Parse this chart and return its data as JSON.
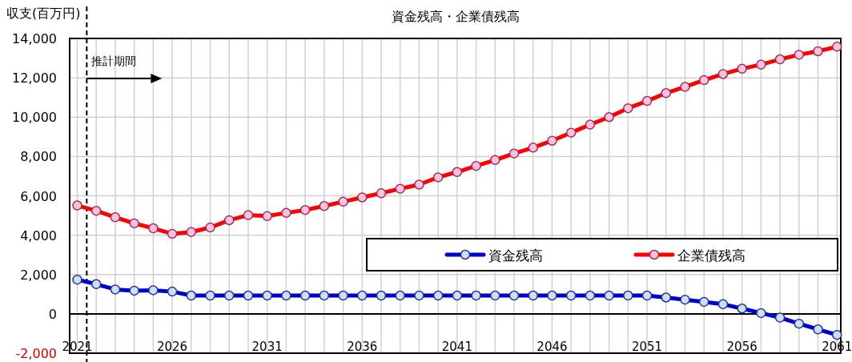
{
  "chart_data": {
    "type": "line",
    "title": "資金残高・企業債残高",
    "ylabel": "収支(百万円)",
    "x": [
      2021,
      2022,
      2023,
      2024,
      2025,
      2026,
      2027,
      2028,
      2029,
      2030,
      2031,
      2032,
      2033,
      2034,
      2035,
      2036,
      2037,
      2038,
      2039,
      2040,
      2041,
      2042,
      2043,
      2044,
      2045,
      2046,
      2047,
      2048,
      2049,
      2050,
      2051,
      2052,
      2053,
      2054,
      2055,
      2056,
      2057,
      2058,
      2059,
      2060,
      2061
    ],
    "series": [
      {
        "name": "資金残高",
        "color": "#0000cc",
        "values": [
          1740,
          1510,
          1240,
          1180,
          1200,
          1130,
          930,
          930,
          930,
          930,
          930,
          930,
          930,
          930,
          930,
          930,
          930,
          930,
          930,
          930,
          930,
          930,
          930,
          930,
          930,
          930,
          930,
          930,
          930,
          930,
          930,
          830,
          720,
          610,
          490,
          270,
          40,
          -190,
          -500,
          -790,
          -1070
        ]
      },
      {
        "name": "企業債残高",
        "color": "#ff0000",
        "values": [
          5510,
          5240,
          4910,
          4600,
          4350,
          4070,
          4160,
          4390,
          4760,
          5020,
          4970,
          5130,
          5280,
          5480,
          5700,
          5920,
          6130,
          6360,
          6570,
          6940,
          7210,
          7520,
          7820,
          8150,
          8450,
          8800,
          9210,
          9620,
          10000,
          10450,
          10820,
          11220,
          11540,
          11880,
          12190,
          12460,
          12670,
          12940,
          13170,
          13350,
          13580
        ]
      }
    ],
    "xlim": [
      2020.6,
      2061.2
    ],
    "xticks": [
      2021,
      {
        "value": 2022,
        "label": null
      },
      {
        "value": 2023,
        "label": null
      },
      {
        "value": 2024,
        "label": null
      },
      {
        "value": 2025,
        "label": null
      },
      2026,
      {
        "value": 2027,
        "label": null
      },
      {
        "value": 2028,
        "label": null
      },
      {
        "value": 2029,
        "label": null
      },
      {
        "value": 2030,
        "label": null
      },
      2031,
      {
        "value": 2032,
        "label": null
      },
      {
        "value": 2033,
        "label": null
      },
      {
        "value": 2034,
        "label": null
      },
      {
        "value": 2035,
        "label": null
      },
      2036,
      {
        "value": 2037,
        "label": null
      },
      {
        "value": 2038,
        "label": null
      },
      {
        "value": 2039,
        "label": null
      },
      {
        "value": 2040,
        "label": null
      },
      2041,
      {
        "value": 2042,
        "label": null
      },
      {
        "value": 2043,
        "label": null
      },
      {
        "value": 2044,
        "label": null
      },
      {
        "value": 2045,
        "label": null
      },
      2046,
      {
        "value": 2047,
        "label": null
      },
      {
        "value": 2048,
        "label": null
      },
      {
        "value": 2049,
        "label": null
      },
      {
        "value": 2050,
        "label": null
      },
      2051,
      {
        "value": 2052,
        "label": null
      },
      {
        "value": 2053,
        "label": null
      },
      {
        "value": 2054,
        "label": null
      },
      {
        "value": 2055,
        "label": null
      },
      2056,
      {
        "value": 2057,
        "label": null
      },
      {
        "value": 2058,
        "label": null
      },
      {
        "value": 2059,
        "label": null
      },
      {
        "value": 2060,
        "label": null
      },
      2061
    ],
    "ylim": [
      -2000,
      14000
    ],
    "yticks": [
      {
        "value": -2000,
        "label": "-2,000"
      },
      {
        "value": 0,
        "label": "0"
      },
      {
        "value": 2000,
        "label": "2,000"
      },
      {
        "value": 4000,
        "label": "4,000"
      },
      {
        "value": 6000,
        "label": "6,000"
      },
      {
        "value": 8000,
        "label": "8,000"
      },
      {
        "value": 10000,
        "label": "10,000"
      },
      {
        "value": 12000,
        "label": "12,000"
      },
      {
        "value": 14000,
        "label": "14,000"
      }
    ],
    "ref_lines": [
      {
        "axis": "x",
        "value": 2021.5,
        "label": "推計期間",
        "line_style": "dashed",
        "color": "#000000"
      }
    ],
    "grid": true,
    "legend": "right",
    "marker": "circle",
    "line_style": "solid"
  }
}
